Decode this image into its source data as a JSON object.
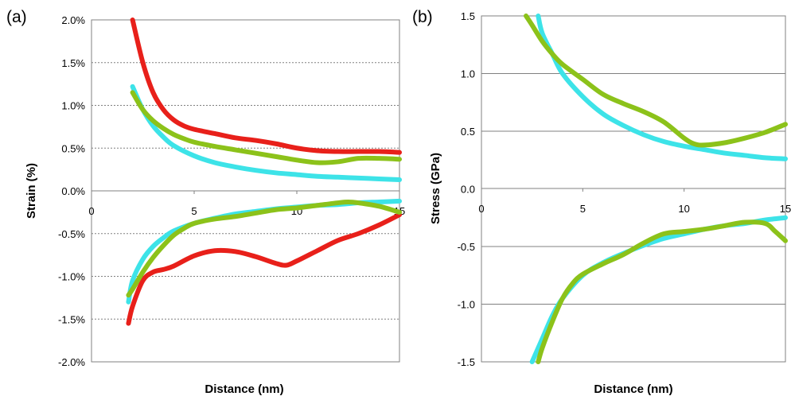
{
  "chart_data": [
    {
      "panel_label": "(a)",
      "type": "line",
      "xlabel": "Distance (nm)",
      "ylabel": "Strain (%)",
      "xlim": [
        0,
        15
      ],
      "ylim": [
        -2.0,
        2.0
      ],
      "x_ticks": [
        "0",
        "5",
        "10",
        "15"
      ],
      "y_ticks": [
        "2.0%",
        "1.5%",
        "1.0%",
        "0.5%",
        "0.0%",
        "-0.5%",
        "-1.0%",
        "-1.5%",
        "-2.0%"
      ],
      "grid": "horizontal dotted",
      "colors": {
        "red": "#e8201a",
        "cyan": "#3de3e8",
        "green": "#8cc21a"
      },
      "series": [
        {
          "color": "red",
          "x": [
            2.0,
            2.5,
            3.0,
            3.5,
            4.0,
            4.5,
            5.0,
            6.0,
            7.0,
            8.0,
            9.0,
            10.0,
            11.0,
            12.0,
            13.0,
            14.0,
            15.0
          ],
          "y": [
            2.0,
            1.5,
            1.15,
            0.95,
            0.83,
            0.76,
            0.72,
            0.67,
            0.62,
            0.59,
            0.55,
            0.5,
            0.47,
            0.46,
            0.46,
            0.46,
            0.45
          ]
        },
        {
          "color": "cyan",
          "x": [
            2.0,
            2.5,
            3.0,
            3.5,
            4.0,
            5.0,
            6.0,
            7.0,
            8.0,
            9.0,
            10.0,
            11.0,
            12.0,
            13.0,
            14.0,
            15.0
          ],
          "y": [
            1.22,
            0.95,
            0.76,
            0.63,
            0.53,
            0.41,
            0.33,
            0.28,
            0.24,
            0.21,
            0.19,
            0.17,
            0.16,
            0.15,
            0.14,
            0.13
          ]
        },
        {
          "color": "green",
          "x": [
            2.0,
            2.5,
            3.0,
            3.5,
            4.0,
            4.5,
            5.0,
            6.0,
            7.0,
            8.0,
            9.0,
            10.0,
            11.0,
            12.0,
            13.0,
            14.0,
            15.0
          ],
          "y": [
            1.15,
            0.95,
            0.82,
            0.73,
            0.66,
            0.61,
            0.57,
            0.52,
            0.48,
            0.44,
            0.4,
            0.36,
            0.33,
            0.34,
            0.38,
            0.38,
            0.37
          ]
        },
        {
          "color": "red",
          "x": [
            1.8,
            2.0,
            2.5,
            3.0,
            3.5,
            4.0,
            5.0,
            6.0,
            7.0,
            8.0,
            9.0,
            9.5,
            10.0,
            11.0,
            12.0,
            13.0,
            14.0,
            15.0
          ],
          "y": [
            -1.55,
            -1.35,
            -1.05,
            -0.95,
            -0.92,
            -0.88,
            -0.76,
            -0.7,
            -0.71,
            -0.77,
            -0.85,
            -0.87,
            -0.82,
            -0.7,
            -0.58,
            -0.5,
            -0.4,
            -0.28
          ]
        },
        {
          "color": "cyan",
          "x": [
            1.8,
            2.0,
            2.5,
            3.0,
            3.5,
            4.0,
            5.0,
            6.0,
            7.0,
            8.0,
            9.0,
            10.0,
            11.0,
            12.0,
            13.0,
            14.0,
            15.0
          ],
          "y": [
            -1.3,
            -1.05,
            -0.8,
            -0.65,
            -0.55,
            -0.47,
            -0.38,
            -0.32,
            -0.27,
            -0.24,
            -0.21,
            -0.19,
            -0.17,
            -0.16,
            -0.14,
            -0.13,
            -0.12
          ]
        },
        {
          "color": "green",
          "x": [
            1.8,
            2.0,
            2.5,
            3.0,
            3.5,
            4.0,
            4.5,
            5.0,
            6.0,
            7.0,
            8.0,
            9.0,
            10.0,
            11.0,
            12.0,
            12.5,
            13.0,
            14.0,
            15.0
          ],
          "y": [
            -1.22,
            -1.15,
            -0.95,
            -0.78,
            -0.64,
            -0.52,
            -0.44,
            -0.38,
            -0.33,
            -0.3,
            -0.26,
            -0.22,
            -0.2,
            -0.17,
            -0.14,
            -0.13,
            -0.14,
            -0.18,
            -0.25
          ]
        }
      ]
    },
    {
      "panel_label": "(b)",
      "type": "line",
      "xlabel": "Distance (nm)",
      "ylabel": "Stress (GPa)",
      "xlim": [
        0,
        15
      ],
      "ylim": [
        -1.5,
        1.5
      ],
      "x_ticks": [
        "0",
        "5",
        "10",
        "15"
      ],
      "y_ticks": [
        "1.5",
        "1.0",
        "0.5",
        "0.0",
        "-0.5",
        "-1.0",
        "-1.5"
      ],
      "grid": "horizontal solid",
      "colors": {
        "cyan": "#3de3e8",
        "green": "#8cc21a"
      },
      "series": [
        {
          "color": "cyan",
          "x": [
            2.8,
            3.0,
            3.5,
            4.0,
            5.0,
            6.0,
            7.0,
            8.0,
            9.0,
            10.0,
            11.0,
            12.0,
            13.0,
            14.0,
            15.0
          ],
          "y": [
            1.5,
            1.35,
            1.17,
            1.0,
            0.8,
            0.65,
            0.55,
            0.47,
            0.41,
            0.37,
            0.34,
            0.31,
            0.29,
            0.27,
            0.26
          ]
        },
        {
          "color": "green",
          "x": [
            2.2,
            2.5,
            3.0,
            3.5,
            4.0,
            5.0,
            6.0,
            7.0,
            8.0,
            9.0,
            10.0,
            10.5,
            11.0,
            12.0,
            13.0,
            14.0,
            15.0
          ],
          "y": [
            1.5,
            1.42,
            1.28,
            1.17,
            1.08,
            0.95,
            0.82,
            0.74,
            0.67,
            0.58,
            0.44,
            0.39,
            0.38,
            0.4,
            0.44,
            0.49,
            0.56
          ]
        },
        {
          "color": "cyan",
          "x": [
            2.5,
            3.0,
            3.5,
            4.0,
            5.0,
            6.0,
            7.0,
            8.0,
            9.0,
            10.0,
            11.0,
            12.0,
            13.0,
            14.0,
            15.0
          ],
          "y": [
            -1.5,
            -1.3,
            -1.1,
            -0.95,
            -0.75,
            -0.64,
            -0.56,
            -0.49,
            -0.43,
            -0.39,
            -0.35,
            -0.32,
            -0.3,
            -0.27,
            -0.25
          ]
        },
        {
          "color": "green",
          "x": [
            2.8,
            3.0,
            3.5,
            4.0,
            4.5,
            5.0,
            6.0,
            7.0,
            8.0,
            9.0,
            10.0,
            11.0,
            12.0,
            13.0,
            14.0,
            14.5,
            15.0
          ],
          "y": [
            -1.5,
            -1.38,
            -1.15,
            -0.95,
            -0.82,
            -0.74,
            -0.65,
            -0.57,
            -0.47,
            -0.39,
            -0.37,
            -0.35,
            -0.32,
            -0.29,
            -0.3,
            -0.37,
            -0.45
          ]
        }
      ]
    }
  ]
}
